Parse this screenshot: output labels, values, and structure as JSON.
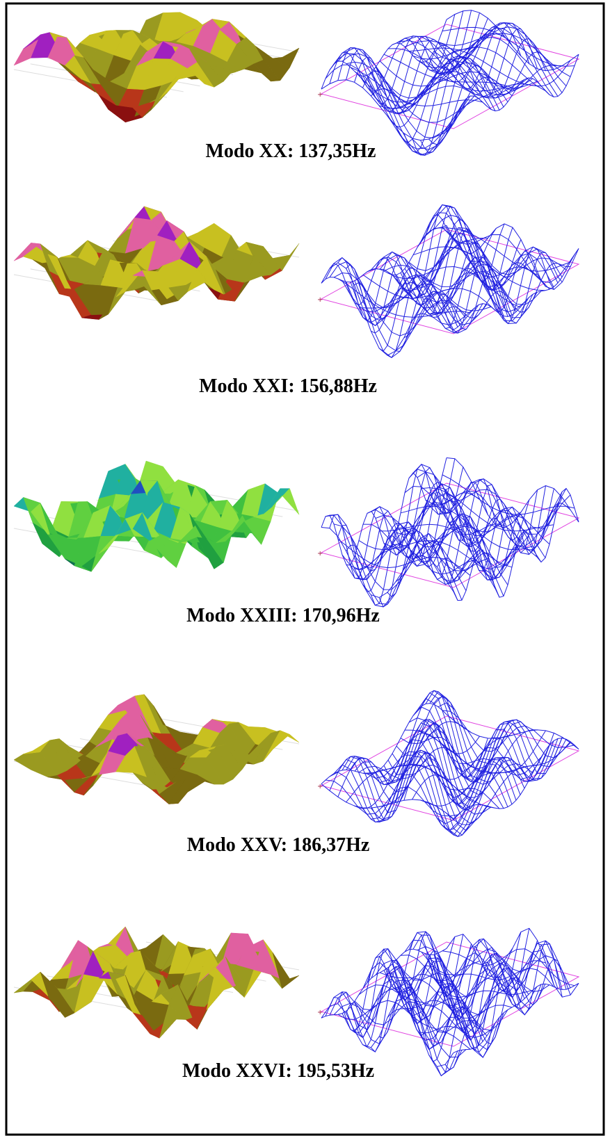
{
  "figure": {
    "captions": [
      "Modo XX: 137,35Hz",
      "Modo XXI: 156,88Hz",
      "Modo XXIII: 170,96Hz",
      "Modo XXV: 186,37Hz",
      "Modo XXVI: 195,53Hz"
    ]
  }
}
